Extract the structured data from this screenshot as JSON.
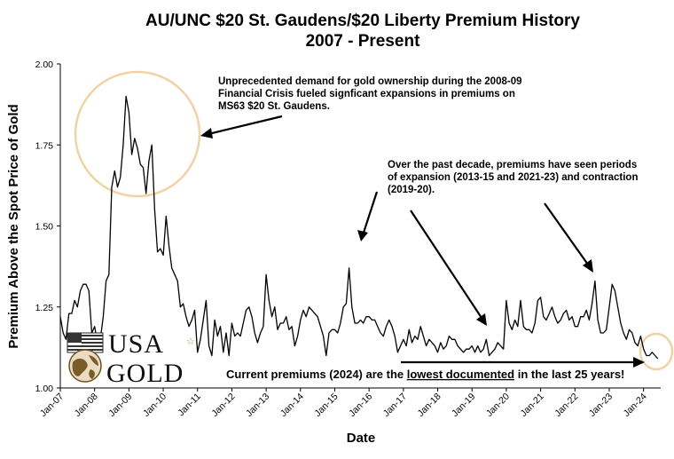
{
  "chart_data": {
    "type": "line",
    "title": "AU/UNC $20 St. Gaudens/$20 Liberty Premium History",
    "subtitle": "2007 - Present",
    "xlabel": "Date",
    "ylabel": "Premium Above the Spot Price of Gold",
    "ylim": [
      1.0,
      2.0
    ],
    "xlim": [
      "2007-01",
      "2024-07"
    ],
    "yticks": [
      "1.00",
      "1.25",
      "1.50",
      "1.75",
      "2.00"
    ],
    "xticks": [
      "Jan-07",
      "Jan-08",
      "Jan-09",
      "Jan-10",
      "Jan-11",
      "Jan-12",
      "Jan-13",
      "Jan-14",
      "Jan-15",
      "Jan-16",
      "Jan-17",
      "Jan-18",
      "Jan-19",
      "Jan-20",
      "Jan-21",
      "Jan-22",
      "Jan-23",
      "Jan-24"
    ],
    "grid": false,
    "series": [
      {
        "x": [
          "2007-01",
          "2007-02",
          "2007-03",
          "2007-04",
          "2007-05",
          "2007-06",
          "2007-07",
          "2007-08",
          "2007-09",
          "2007-10",
          "2007-11",
          "2007-12",
          "2008-01",
          "2008-02",
          "2008-03",
          "2008-04",
          "2008-05",
          "2008-06",
          "2008-07",
          "2008-08",
          "2008-09",
          "2008-10",
          "2008-11",
          "2008-12",
          "2009-01",
          "2009-02",
          "2009-03",
          "2009-04",
          "2009-05",
          "2009-06",
          "2009-07",
          "2009-08",
          "2009-09",
          "2009-10",
          "2009-11",
          "2009-12",
          "2010-01",
          "2010-02",
          "2010-03",
          "2010-04",
          "2010-05",
          "2010-06",
          "2010-07",
          "2010-08",
          "2010-09",
          "2010-10",
          "2010-11",
          "2010-12",
          "2011-01",
          "2011-02",
          "2011-03",
          "2011-04",
          "2011-05",
          "2011-06",
          "2011-07",
          "2011-08",
          "2011-09",
          "2011-10",
          "2011-11",
          "2011-12",
          "2012-01",
          "2012-02",
          "2012-03",
          "2012-04",
          "2012-05",
          "2012-06",
          "2012-07",
          "2012-08",
          "2012-09",
          "2012-10",
          "2012-11",
          "2012-12",
          "2013-01",
          "2013-02",
          "2013-03",
          "2013-04",
          "2013-05",
          "2013-06",
          "2013-07",
          "2013-08",
          "2013-09",
          "2013-10",
          "2013-11",
          "2013-12",
          "2014-01",
          "2014-02",
          "2014-03",
          "2014-04",
          "2014-05",
          "2014-06",
          "2014-07",
          "2014-08",
          "2014-09",
          "2014-10",
          "2014-11",
          "2014-12",
          "2015-01",
          "2015-02",
          "2015-03",
          "2015-04",
          "2015-05",
          "2015-06",
          "2015-07",
          "2015-08",
          "2015-09",
          "2015-10",
          "2015-11",
          "2015-12",
          "2016-01",
          "2016-02",
          "2016-03",
          "2016-04",
          "2016-05",
          "2016-06",
          "2016-07",
          "2016-08",
          "2016-09",
          "2016-10",
          "2016-11",
          "2016-12",
          "2017-01",
          "2017-02",
          "2017-03",
          "2017-04",
          "2017-05",
          "2017-06",
          "2017-07",
          "2017-08",
          "2017-09",
          "2017-10",
          "2017-11",
          "2017-12",
          "2018-01",
          "2018-02",
          "2018-03",
          "2018-04",
          "2018-05",
          "2018-06",
          "2018-07",
          "2018-08",
          "2018-09",
          "2018-10",
          "2018-11",
          "2018-12",
          "2019-01",
          "2019-02",
          "2019-03",
          "2019-04",
          "2019-05",
          "2019-06",
          "2019-07",
          "2019-08",
          "2019-09",
          "2019-10",
          "2019-11",
          "2019-12",
          "2020-01",
          "2020-02",
          "2020-03",
          "2020-04",
          "2020-05",
          "2020-06",
          "2020-07",
          "2020-08",
          "2020-09",
          "2020-10",
          "2020-11",
          "2020-12",
          "2021-01",
          "2021-02",
          "2021-03",
          "2021-04",
          "2021-05",
          "2021-06",
          "2021-07",
          "2021-08",
          "2021-09",
          "2021-10",
          "2021-11",
          "2021-12",
          "2022-01",
          "2022-02",
          "2022-03",
          "2022-04",
          "2022-05",
          "2022-06",
          "2022-07",
          "2022-08",
          "2022-09",
          "2022-10",
          "2022-11",
          "2022-12",
          "2023-01",
          "2023-02",
          "2023-03",
          "2023-04",
          "2023-05",
          "2023-06",
          "2023-07",
          "2023-08",
          "2023-09",
          "2023-10",
          "2023-11",
          "2023-12",
          "2024-01",
          "2024-02",
          "2024-03",
          "2024-04",
          "2024-05",
          "2024-06"
        ],
        "y": [
          1.22,
          1.17,
          1.15,
          1.23,
          1.23,
          1.27,
          1.25,
          1.3,
          1.32,
          1.32,
          1.3,
          1.17,
          1.19,
          1.14,
          1.15,
          1.22,
          1.33,
          1.35,
          1.62,
          1.67,
          1.62,
          1.65,
          1.75,
          1.9,
          1.85,
          1.72,
          1.77,
          1.74,
          1.69,
          1.68,
          1.6,
          1.7,
          1.75,
          1.55,
          1.42,
          1.43,
          1.41,
          1.53,
          1.44,
          1.37,
          1.35,
          1.33,
          1.25,
          1.26,
          1.22,
          1.19,
          1.21,
          1.24,
          1.11,
          1.15,
          1.21,
          1.27,
          1.13,
          1.1,
          1.21,
          1.16,
          1.19,
          1.11,
          1.17,
          1.1,
          1.2,
          1.16,
          1.17,
          1.16,
          1.2,
          1.24,
          1.25,
          1.22,
          1.17,
          1.14,
          1.17,
          1.19,
          1.35,
          1.27,
          1.22,
          1.25,
          1.18,
          1.2,
          1.2,
          1.22,
          1.18,
          1.19,
          1.13,
          1.16,
          1.21,
          1.24,
          1.22,
          1.25,
          1.24,
          1.23,
          1.22,
          1.19,
          1.16,
          1.1,
          1.17,
          1.18,
          1.18,
          1.17,
          1.2,
          1.25,
          1.26,
          1.37,
          1.25,
          1.2,
          1.2,
          1.21,
          1.2,
          1.22,
          1.22,
          1.21,
          1.21,
          1.19,
          1.17,
          1.16,
          1.19,
          1.21,
          1.19,
          1.16,
          1.11,
          1.13,
          1.15,
          1.13,
          1.18,
          1.14,
          1.16,
          1.15,
          1.19,
          1.16,
          1.13,
          1.15,
          1.14,
          1.13,
          1.11,
          1.14,
          1.12,
          1.13,
          1.16,
          1.15,
          1.15,
          1.13,
          1.12,
          1.11,
          1.12,
          1.12,
          1.13,
          1.11,
          1.13,
          1.11,
          1.12,
          1.15,
          1.1,
          1.11,
          1.12,
          1.14,
          1.13,
          1.12,
          1.27,
          1.2,
          1.18,
          1.21,
          1.19,
          1.27,
          1.19,
          1.18,
          1.18,
          1.17,
          1.2,
          1.27,
          1.28,
          1.22,
          1.21,
          1.23,
          1.25,
          1.22,
          1.2,
          1.21,
          1.23,
          1.24,
          1.21,
          1.22,
          1.19,
          1.19,
          1.22,
          1.22,
          1.24,
          1.21,
          1.26,
          1.33,
          1.21,
          1.17,
          1.17,
          1.18,
          1.25,
          1.32,
          1.3,
          1.25,
          1.2,
          1.17,
          1.15,
          1.18,
          1.17,
          1.14,
          1.13,
          1.16,
          1.12,
          1.1,
          1.1,
          1.11,
          1.1,
          1.09
        ]
      }
    ],
    "annotations": [
      {
        "lines": [
          "Unprecedented demand for gold ownership during the 2008-09",
          "Financial Crisis fueled signficant expansions in premiums on",
          "MS63 $20 St. Gaudens."
        ]
      },
      {
        "lines": [
          "Over the past decade, premiums have seen periods",
          "of expansion (2013-15 and 2021-23) and contraction",
          "(2019-20)."
        ]
      },
      {
        "before": "Current premiums (2024) are the ",
        "underlined": "lowest documented",
        "after": " in the last 25 years!"
      }
    ],
    "colors": {
      "line": "#000000",
      "circle": "#f0d3a4"
    },
    "logo": {
      "top": "USA",
      "bottom": "GOLD"
    }
  }
}
